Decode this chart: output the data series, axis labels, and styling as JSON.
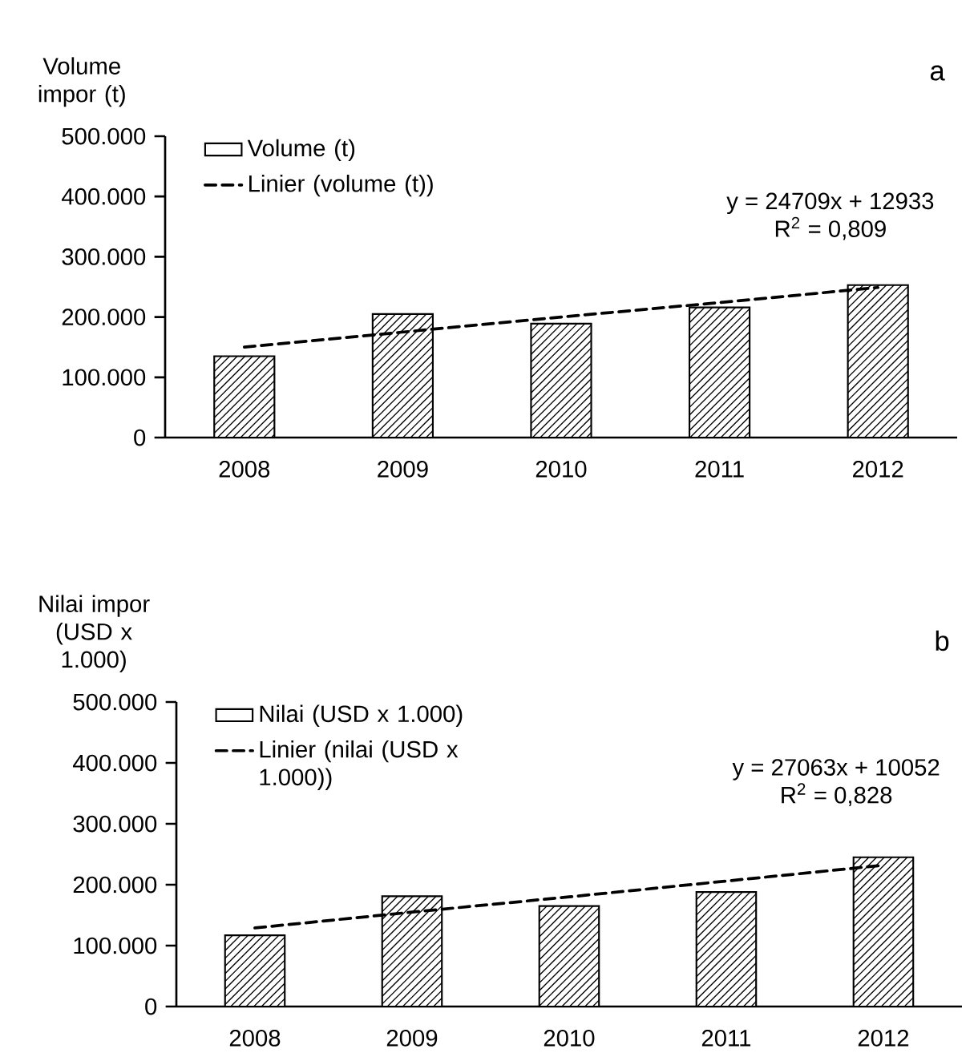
{
  "chart_data": [
    {
      "type": "bar",
      "title": "a",
      "ylabel": "Volume impor (t)",
      "categories": [
        "2008",
        "2009",
        "2010",
        "2011",
        "2012"
      ],
      "series": [
        {
          "name": "Volume (t)",
          "color": "#000000",
          "values": [
            135000,
            205000,
            189000,
            216000,
            253000
          ]
        },
        {
          "name": "Linier (volume (t))",
          "type": "line",
          "line_style": "dashed",
          "color": "#000000",
          "values": [
            150000,
            175000,
            200000,
            224000,
            249000
          ]
        }
      ],
      "ylim": [
        0,
        500000
      ],
      "yticks": [
        {
          "value": 0,
          "label": "0"
        },
        {
          "value": 100000,
          "label": "100.000"
        },
        {
          "value": 200000,
          "label": "200.000"
        },
        {
          "value": 300000,
          "label": "300.000"
        },
        {
          "value": 400000,
          "label": "400.000"
        },
        {
          "value": 500000,
          "label": "500.000"
        }
      ],
      "annotations": [
        "y = 24709x + 12933",
        "R$^{2}$ = 0,809"
      ],
      "legend": "top left"
    },
    {
      "type": "bar",
      "title": "b",
      "ylabel": "Nilai impor (USD x 1.000)",
      "categories": [
        "2008",
        "2009",
        "2010",
        "2011",
        "2012"
      ],
      "series": [
        {
          "name": "Nilai (USD x 1.000)",
          "color": "#000000",
          "values": [
            117000,
            181000,
            165000,
            188000,
            245000
          ]
        },
        {
          "name": "Linier (nilai (USD x 1.000))",
          "type": "line",
          "line_style": "dashed",
          "color": "#000000",
          "values": [
            129000,
            155000,
            180000,
            206000,
            232000
          ]
        }
      ],
      "ylim": [
        0,
        500000
      ],
      "yticks": [
        {
          "value": 0,
          "label": "0"
        },
        {
          "value": 100000,
          "label": "100.000"
        },
        {
          "value": 200000,
          "label": "200.000"
        },
        {
          "value": 300000,
          "label": "300.000"
        },
        {
          "value": 400000,
          "label": "400.000"
        },
        {
          "value": 500000,
          "label": "500.000"
        }
      ],
      "annotations": [
        "y = 27063x + 10052",
        "R$^{2}$ = 0,828"
      ],
      "legend": "top left"
    }
  ]
}
